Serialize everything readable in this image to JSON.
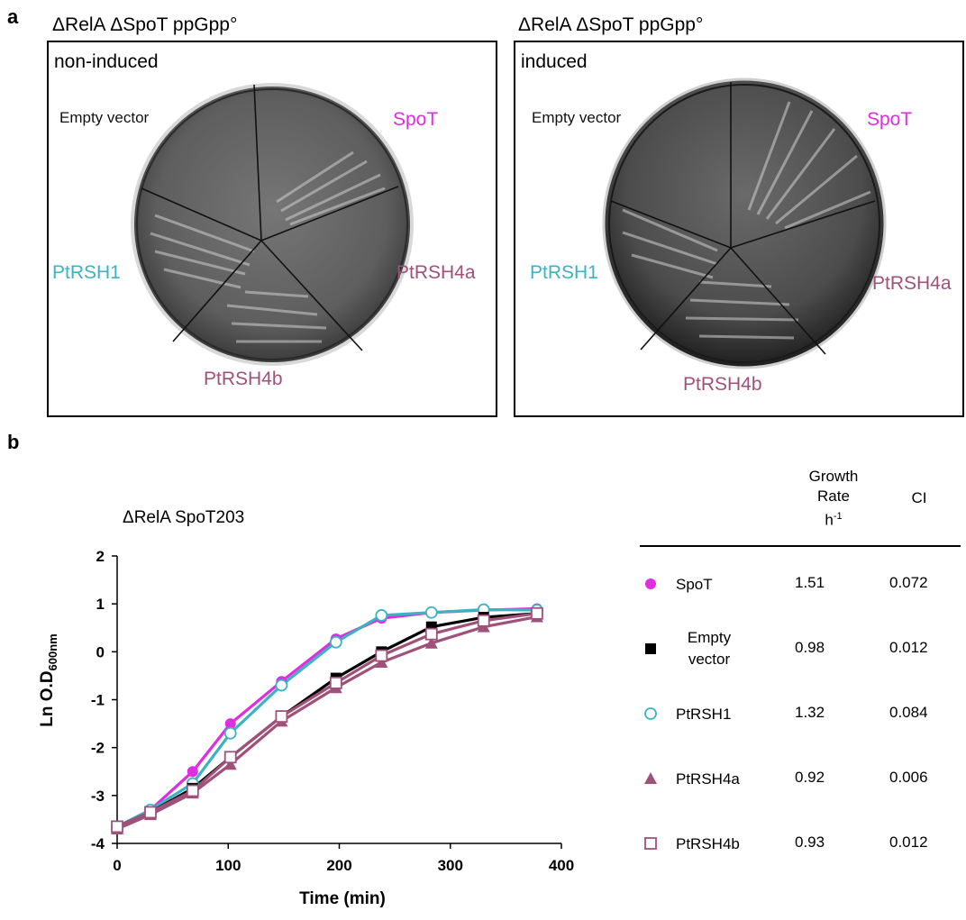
{
  "panel_a": {
    "letter": "a",
    "plates": [
      {
        "title": "ΔRelA ΔSpoT ppGpp°",
        "condition": "non-induced",
        "labels": {
          "empty_vector": "Empty vector",
          "spot": "SpoT",
          "ptrsh1": "PtRSH1",
          "ptrsh4a": "PtRSH4a",
          "ptrsh4b": "PtRSH4b"
        }
      },
      {
        "title": "ΔRelA ΔSpoT ppGpp°",
        "condition": "induced",
        "labels": {
          "empty_vector": "Empty vector",
          "spot": "SpoT",
          "ptrsh1": "PtRSH1",
          "ptrsh4a": "PtRSH4a",
          "ptrsh4b": "PtRSH4b"
        }
      }
    ]
  },
  "panel_b": {
    "letter": "b"
  },
  "colors": {
    "spot": "#e02de0",
    "ptrsh1": "#3bb3c3",
    "ptrsh4": "#a0517a",
    "empty": "#000000"
  },
  "chart_data": {
    "type": "line",
    "title": "ΔRelA SpoT203",
    "xlabel": "Time (min)",
    "ylabel_main": "Ln O.D",
    "ylabel_sub": "600nm",
    "xlim": [
      0,
      400
    ],
    "ylim": [
      -4,
      2
    ],
    "xticks": [
      0,
      100,
      200,
      300,
      400
    ],
    "yticks": [
      2,
      1,
      0,
      -1,
      -2,
      -3,
      -4
    ],
    "series": [
      {
        "key": "spot",
        "marker": "circle-filled",
        "x": [
          0,
          30,
          68,
          102,
          148,
          197,
          238,
          283,
          330,
          378
        ],
        "y": [
          -3.65,
          -3.3,
          -2.5,
          -1.5,
          -0.62,
          0.27,
          0.7,
          0.82,
          0.87,
          0.9
        ]
      },
      {
        "key": "ptrsh1",
        "marker": "circle-open",
        "x": [
          0,
          30,
          68,
          102,
          148,
          197,
          238,
          283,
          330,
          378
        ],
        "y": [
          -3.65,
          -3.3,
          -2.75,
          -1.7,
          -0.7,
          0.2,
          0.76,
          0.82,
          0.88,
          0.87
        ]
      },
      {
        "key": "empty",
        "marker": "square-filled",
        "x": [
          0,
          30,
          68,
          102,
          148,
          197,
          238,
          283,
          330,
          378
        ],
        "y": [
          -3.65,
          -3.35,
          -2.85,
          -2.2,
          -1.35,
          -0.55,
          0.0,
          0.52,
          0.72,
          0.8
        ]
      },
      {
        "key": "ptrsh4a",
        "marker": "triangle-filled",
        "x": [
          0,
          30,
          68,
          102,
          148,
          197,
          238,
          283,
          330,
          378
        ],
        "y": [
          -3.7,
          -3.4,
          -2.95,
          -2.35,
          -1.45,
          -0.75,
          -0.22,
          0.18,
          0.52,
          0.73
        ]
      },
      {
        "key": "ptrsh4b",
        "marker": "square-open",
        "x": [
          0,
          30,
          68,
          102,
          148,
          197,
          238,
          283,
          330,
          378
        ],
        "y": [
          -3.65,
          -3.35,
          -2.9,
          -2.2,
          -1.35,
          -0.65,
          -0.08,
          0.37,
          0.65,
          0.8
        ]
      }
    ]
  },
  "table": {
    "headers": {
      "rate_line1": "Growth",
      "rate_line2": "Rate",
      "rate_line3": "h",
      "rate_sup": "-1",
      "ci": "CI"
    },
    "rows": [
      {
        "key": "spot",
        "marker": "circle-filled",
        "name_line1": "SpoT",
        "name_line2": "",
        "rate": "1.51",
        "ci": "0.072"
      },
      {
        "key": "empty",
        "marker": "square-filled",
        "name_line1": "Empty",
        "name_line2": "vector",
        "rate": "0.98",
        "ci": "0.012"
      },
      {
        "key": "ptrsh1",
        "marker": "circle-open",
        "name_line1": "PtRSH1",
        "name_line2": "",
        "rate": "1.32",
        "ci": "0.084"
      },
      {
        "key": "ptrsh4a",
        "marker": "triangle-filled",
        "name_line1": "PtRSH4a",
        "name_line2": "",
        "rate": "0.92",
        "ci": "0.006"
      },
      {
        "key": "ptrsh4b",
        "marker": "square-open",
        "name_line1": "PtRSH4b",
        "name_line2": "",
        "rate": "0.93",
        "ci": "0.012"
      }
    ]
  }
}
